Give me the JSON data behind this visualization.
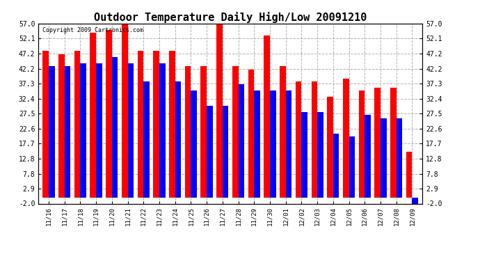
{
  "title": "Outdoor Temperature Daily High/Low 20091210",
  "copyright": "Copyright 2009 Cartronics.com",
  "dates": [
    "11/16",
    "11/17",
    "11/18",
    "11/19",
    "11/20",
    "11/21",
    "11/22",
    "11/23",
    "11/24",
    "11/25",
    "11/26",
    "11/27",
    "11/28",
    "11/29",
    "11/30",
    "12/01",
    "12/02",
    "12/03",
    "12/04",
    "12/05",
    "12/06",
    "12/07",
    "12/08",
    "12/09"
  ],
  "highs": [
    48,
    47,
    48,
    54,
    55,
    57,
    48,
    48,
    48,
    43,
    43,
    57,
    43,
    42,
    53,
    43,
    38,
    38,
    33,
    39,
    35,
    36,
    36,
    15
  ],
  "lows": [
    43,
    43,
    44,
    44,
    46,
    44,
    38,
    44,
    38,
    35,
    30,
    30,
    37,
    35,
    35,
    35,
    28,
    28,
    21,
    20,
    27,
    26,
    26,
    -2
  ],
  "high_color": "#ff0000",
  "low_color": "#0000ff",
  "background_color": "#ffffff",
  "grid_color": "#aaaaaa",
  "title_fontsize": 11,
  "ymin": -2.0,
  "ymax": 57.0,
  "ytick_vals": [
    -2.0,
    2.9,
    7.8,
    12.8,
    17.7,
    22.6,
    27.5,
    32.4,
    37.3,
    42.2,
    47.2,
    52.1,
    57.0
  ],
  "ytick_labels": [
    "-2.0",
    "2.9",
    "7.8",
    "12.8",
    "17.7",
    "22.6",
    "27.5",
    "32.4",
    "37.3",
    "42.2",
    "47.2",
    "52.1",
    "57.0"
  ]
}
